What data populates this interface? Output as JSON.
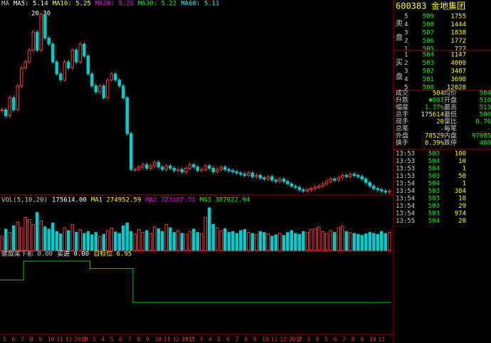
{
  "price_panel": {
    "legend": [
      "MA",
      "MA5: 5.14",
      "MA10: 5.25",
      "MA20: 5.25",
      "MA30: 5.22",
      "MA60: 5.11"
    ],
    "peak_label": "20.30",
    "closes": [
      12,
      11.5,
      13,
      12,
      14,
      15.5,
      16,
      17,
      18.5,
      17,
      20,
      18,
      17.5,
      16,
      15,
      14.5,
      16,
      15.5,
      17,
      16,
      17.5,
      16.5,
      15,
      14,
      13.5,
      14,
      13,
      14.5,
      15,
      14.5,
      14,
      13,
      10,
      7,
      7,
      7.2,
      7.4,
      7.1,
      7.3,
      7.6,
      7.2,
      7,
      7.3,
      7.1,
      6.9,
      7,
      6.8,
      7.1,
      7.4,
      7.2,
      6.9,
      7,
      7.3,
      7.1,
      6.8,
      7,
      7.2,
      7,
      6.9,
      6.8,
      6.7,
      6.6,
      6.5,
      6.7,
      6.4,
      6.5,
      6.3,
      6.2,
      6.4,
      6.1,
      6,
      6.2,
      6,
      5.8,
      5.6,
      5.5,
      5.3,
      5.2,
      5.3,
      5.4,
      5.5,
      5.6,
      5.8,
      6,
      6.2,
      6.1,
      6.3,
      6.5,
      6.4,
      6.6,
      6.5,
      6.4,
      6.2,
      5.9,
      5.6,
      5.4,
      5.3,
      5.2,
      5.1,
      5.2
    ]
  },
  "volume_panel": {
    "legend": [
      "VOL(5,10,20)",
      "175614.00",
      "MA1 274952.59",
      "MA2 323187.31",
      "MA3 387022.94"
    ],
    "values": [
      30,
      45,
      38,
      52,
      60,
      48,
      70,
      65,
      55,
      80,
      62,
      50,
      45,
      58,
      40,
      35,
      48,
      42,
      55,
      38,
      44,
      36,
      40,
      33,
      38,
      30,
      34,
      42,
      47,
      39,
      36,
      52,
      58,
      40,
      35,
      44,
      38,
      42,
      36,
      50,
      46,
      40,
      55,
      48,
      38,
      42,
      36,
      34,
      40,
      45,
      38,
      36,
      70,
      90,
      55,
      48,
      42,
      46,
      38,
      40,
      36,
      42,
      44,
      38,
      36,
      34,
      40,
      38,
      35,
      30,
      33,
      36,
      32,
      38,
      42,
      36,
      34,
      40,
      38,
      44,
      46,
      50,
      40,
      36,
      42,
      38,
      48,
      52,
      40,
      38,
      36,
      34,
      32,
      35,
      38,
      36,
      34,
      40,
      36,
      38
    ]
  },
  "indicator_panel": {
    "legend": [
      "螺旋桨下影 0.00",
      "买进 0.00",
      "目标位 6.95"
    ],
    "values": [
      2,
      2,
      2,
      2,
      2,
      2,
      7,
      7,
      7,
      7,
      7,
      7,
      7,
      7,
      7,
      7,
      7,
      7,
      7,
      7,
      7,
      7,
      7,
      5,
      5,
      5,
      5,
      5,
      5,
      5,
      5,
      5,
      5,
      5,
      -4,
      -4,
      -4,
      -4,
      -4,
      -4,
      -4,
      -4,
      -4,
      -4,
      -4,
      -4,
      -4,
      -4,
      -4,
      -4,
      -4,
      -4,
      -4,
      -4,
      -4,
      -4,
      -4,
      -4,
      -4,
      -4,
      -4,
      -4,
      -4,
      -4,
      -4,
      -4,
      -4,
      -4,
      -4,
      -4,
      -4,
      -4,
      -4,
      -4,
      -4,
      -4,
      -4,
      -4,
      -4,
      -4,
      -4,
      -4,
      -4,
      -4,
      -4,
      -4,
      -4,
      -4,
      -4,
      -4,
      -4,
      -4,
      -4,
      -4,
      -4,
      -4,
      -4,
      -4,
      -4,
      -4
    ]
  },
  "x_axis": [
    "5",
    "6",
    "7",
    "8",
    "9",
    "10",
    "11",
    "12",
    "2010",
    "2",
    "3",
    "4",
    "5",
    "6",
    "7",
    "8",
    "9",
    "10",
    "11",
    "12",
    "2011",
    "2",
    "3",
    "4",
    "5",
    "6",
    "7",
    "8",
    "9",
    "10",
    "11",
    "12",
    "2012",
    "2",
    "3",
    "4",
    "5",
    "6",
    "7",
    "8",
    "9",
    "10",
    "11"
  ],
  "quote": {
    "code": "600383",
    "name": "金地集团",
    "ask_label": [
      "卖",
      "盘"
    ],
    "bid_label": [
      "买",
      "盘"
    ],
    "asks": [
      [
        "5",
        "509",
        "1755"
      ],
      [
        "4",
        "508",
        "1444"
      ],
      [
        "3",
        "507",
        "1838"
      ],
      [
        "2",
        "506",
        "1772"
      ],
      [
        "1",
        "505",
        "722"
      ]
    ],
    "bids": [
      [
        "1",
        "504",
        "1147"
      ],
      [
        "2",
        "503",
        "4000"
      ],
      [
        "3",
        "502",
        "3487"
      ],
      [
        "4",
        "501",
        "3690"
      ],
      [
        "5",
        "500",
        "12028"
      ]
    ],
    "stats": [
      [
        "成交",
        "504",
        "均价",
        "504"
      ],
      [
        "升跌",
        "▼007",
        "开盘",
        "510"
      ],
      [
        "幅度",
        "1.37%",
        "最高",
        "513"
      ],
      [
        "总手",
        "175614",
        "最低",
        "500"
      ],
      [
        "现手",
        "20",
        "量比",
        "0.76"
      ],
      [
        "总笔",
        "-",
        "每笔",
        "-"
      ],
      [
        "外盘",
        "78529",
        "内盘",
        "97085"
      ],
      [
        "换手",
        "0.39%",
        "跌停",
        "460"
      ]
    ],
    "ticks": [
      [
        "13:53",
        "503",
        "100"
      ],
      [
        "13:53",
        "504",
        "10"
      ],
      [
        "13:53",
        "504",
        "1"
      ],
      [
        "13:53",
        "503",
        "50"
      ],
      [
        "13:54",
        "504",
        "1"
      ],
      [
        "13:54",
        "503",
        "384"
      ],
      [
        "13:54",
        "503",
        "10"
      ],
      [
        "13:54",
        "503",
        "29"
      ],
      [
        "13:54",
        "503",
        "974"
      ],
      [
        "13:55",
        "504",
        "20"
      ]
    ]
  }
}
